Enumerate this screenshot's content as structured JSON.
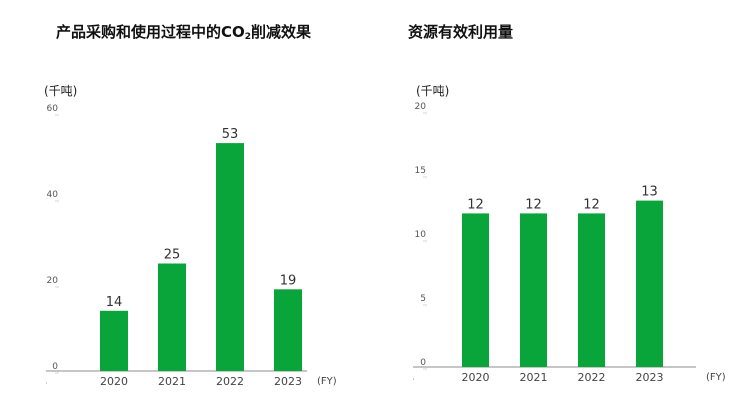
{
  "chart_data": [
    {
      "type": "bar",
      "title_main": "产品采购和使用过程中的CO",
      "title_sub": "2",
      "title_tail": "削减效果",
      "unit": "(千吨)",
      "categories": [
        "2020",
        "2021",
        "2022",
        "2023"
      ],
      "values": [
        14,
        25,
        53,
        19
      ],
      "yticks": [
        "0",
        "20",
        "40",
        "60"
      ],
      "ylim": [
        0,
        60
      ],
      "xunit": "(FY)",
      "bar_color": "#0aa53a",
      "grid": false
    },
    {
      "type": "bar",
      "title_main": "资源有效利用量",
      "unit": "(千吨)",
      "categories": [
        "2020",
        "2021",
        "2022",
        "2023"
      ],
      "values": [
        12,
        12,
        12,
        13
      ],
      "yticks": [
        "0",
        "5",
        "10",
        "15",
        "20"
      ],
      "ylim": [
        0,
        20
      ],
      "xunit": "(FY)",
      "bar_color": "#0aa53a",
      "grid": false
    }
  ]
}
